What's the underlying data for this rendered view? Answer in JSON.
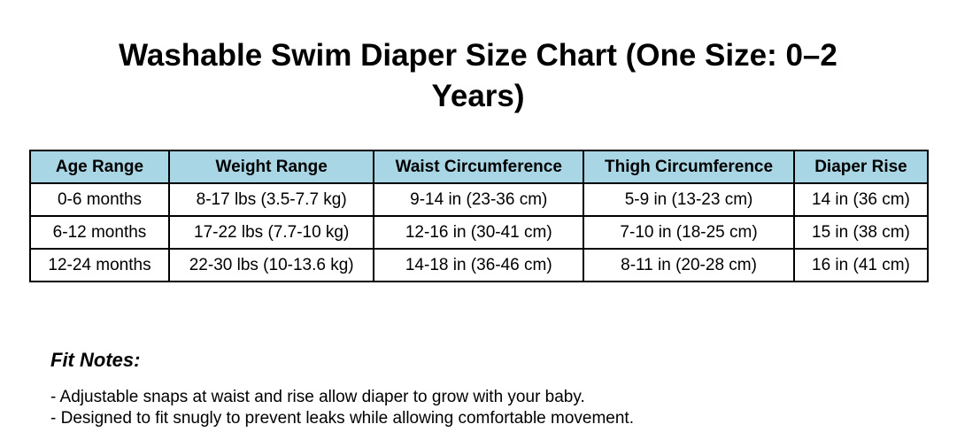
{
  "header": {
    "title": "Washable Swim Diaper Size Chart (One Size: 0–2 Years)"
  },
  "table": {
    "columns": [
      "Age Range",
      "Weight Range",
      "Waist Circumference",
      "Thigh Circumference",
      "Diaper Rise"
    ],
    "rows": [
      [
        "0-6 months",
        "8-17 lbs (3.5-7.7 kg)",
        "9-14 in (23-36 cm)",
        "5-9 in (13-23 cm)",
        "14 in (36 cm)"
      ],
      [
        "6-12 months",
        "17-22 lbs (7.7-10 kg)",
        "12-16 in (30-41 cm)",
        "7-10 in (18-25 cm)",
        "15 in (38 cm)"
      ],
      [
        "12-24 months",
        "22-30 lbs (10-13.6 kg)",
        "14-18 in (36-46 cm)",
        "8-11 in (20-28 cm)",
        "16 in (41 cm)"
      ]
    ]
  },
  "notes": {
    "title": "Fit Notes:",
    "items": [
      "- Adjustable snaps at waist and rise allow diaper to grow with your baby.",
      "- Designed to fit snugly to prevent leaks while allowing comfortable movement."
    ]
  }
}
